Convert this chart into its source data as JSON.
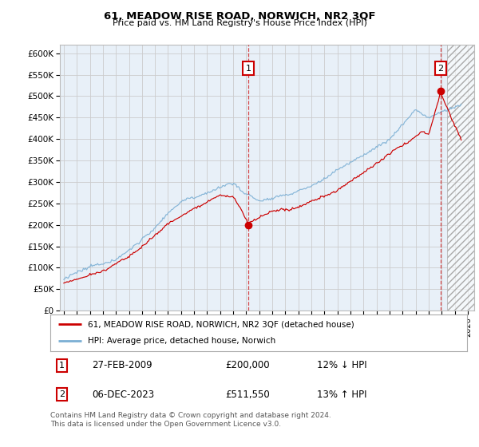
{
  "title": "61, MEADOW RISE ROAD, NORWICH, NR2 3QF",
  "subtitle": "Price paid vs. HM Land Registry's House Price Index (HPI)",
  "ylim": [
    0,
    620000
  ],
  "xlim_start": 1994.7,
  "xlim_end": 2026.5,
  "yticks": [
    0,
    50000,
    100000,
    150000,
    200000,
    250000,
    300000,
    350000,
    400000,
    450000,
    500000,
    550000,
    600000
  ],
  "ytick_labels": [
    "£0",
    "£50K",
    "£100K",
    "£150K",
    "£200K",
    "£250K",
    "£300K",
    "£350K",
    "£400K",
    "£450K",
    "£500K",
    "£550K",
    "£600K"
  ],
  "xticks": [
    1995,
    1996,
    1997,
    1998,
    1999,
    2000,
    2001,
    2002,
    2003,
    2004,
    2005,
    2006,
    2007,
    2008,
    2009,
    2010,
    2011,
    2012,
    2013,
    2014,
    2015,
    2016,
    2017,
    2018,
    2019,
    2020,
    2021,
    2022,
    2023,
    2024,
    2025,
    2026
  ],
  "bg_color": "#e8f0f8",
  "hatch_start": 2024.42,
  "sale1_x": 2009.15,
  "sale1_y": 200000,
  "sale1_label": "1",
  "sale1_date": "27-FEB-2009",
  "sale1_price": "£200,000",
  "sale1_hpi": "12% ↓ HPI",
  "sale2_x": 2023.92,
  "sale2_y": 511550,
  "sale2_label": "2",
  "sale2_date": "06-DEC-2023",
  "sale2_price": "£511,550",
  "sale2_hpi": "13% ↑ HPI",
  "line1_color": "#cc0000",
  "line2_color": "#7bafd4",
  "legend1": "61, MEADOW RISE ROAD, NORWICH, NR2 3QF (detached house)",
  "legend2": "HPI: Average price, detached house, Norwich",
  "footnote": "Contains HM Land Registry data © Crown copyright and database right 2024.\nThis data is licensed under the Open Government Licence v3.0."
}
